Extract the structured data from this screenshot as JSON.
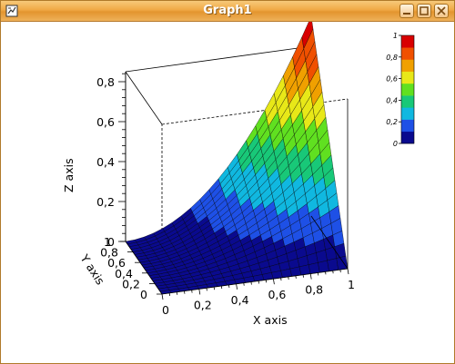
{
  "window": {
    "title": "Graph1"
  },
  "chart_data": {
    "type": "surface3d",
    "title": "",
    "xlabel": "X axis",
    "ylabel": "Y axis",
    "zlabel": "Z axis",
    "xlim": [
      0,
      1
    ],
    "ylim": [
      0,
      1
    ],
    "zlim": [
      0,
      0.85
    ],
    "x_ticks": [
      "0",
      "0,2",
      "0,4",
      "0,6",
      "0,8",
      "1"
    ],
    "y_ticks": [
      "0",
      "0,2",
      "0,4",
      "0,6",
      "0,8",
      "1"
    ],
    "z_ticks": [
      "0",
      "0,2",
      "0,4",
      "0,6",
      "0,8"
    ],
    "surface": "z = x^2 * y",
    "grid_resolution": 20,
    "colorbar": {
      "ticks": [
        "0",
        "0,2",
        "0,4",
        "0,6",
        "0,8",
        "1"
      ],
      "colors": [
        "#0a0a8e",
        "#1e50e6",
        "#10b8e0",
        "#18c878",
        "#60e020",
        "#e8e818",
        "#f0a000",
        "#f05000",
        "#d80000"
      ]
    }
  }
}
